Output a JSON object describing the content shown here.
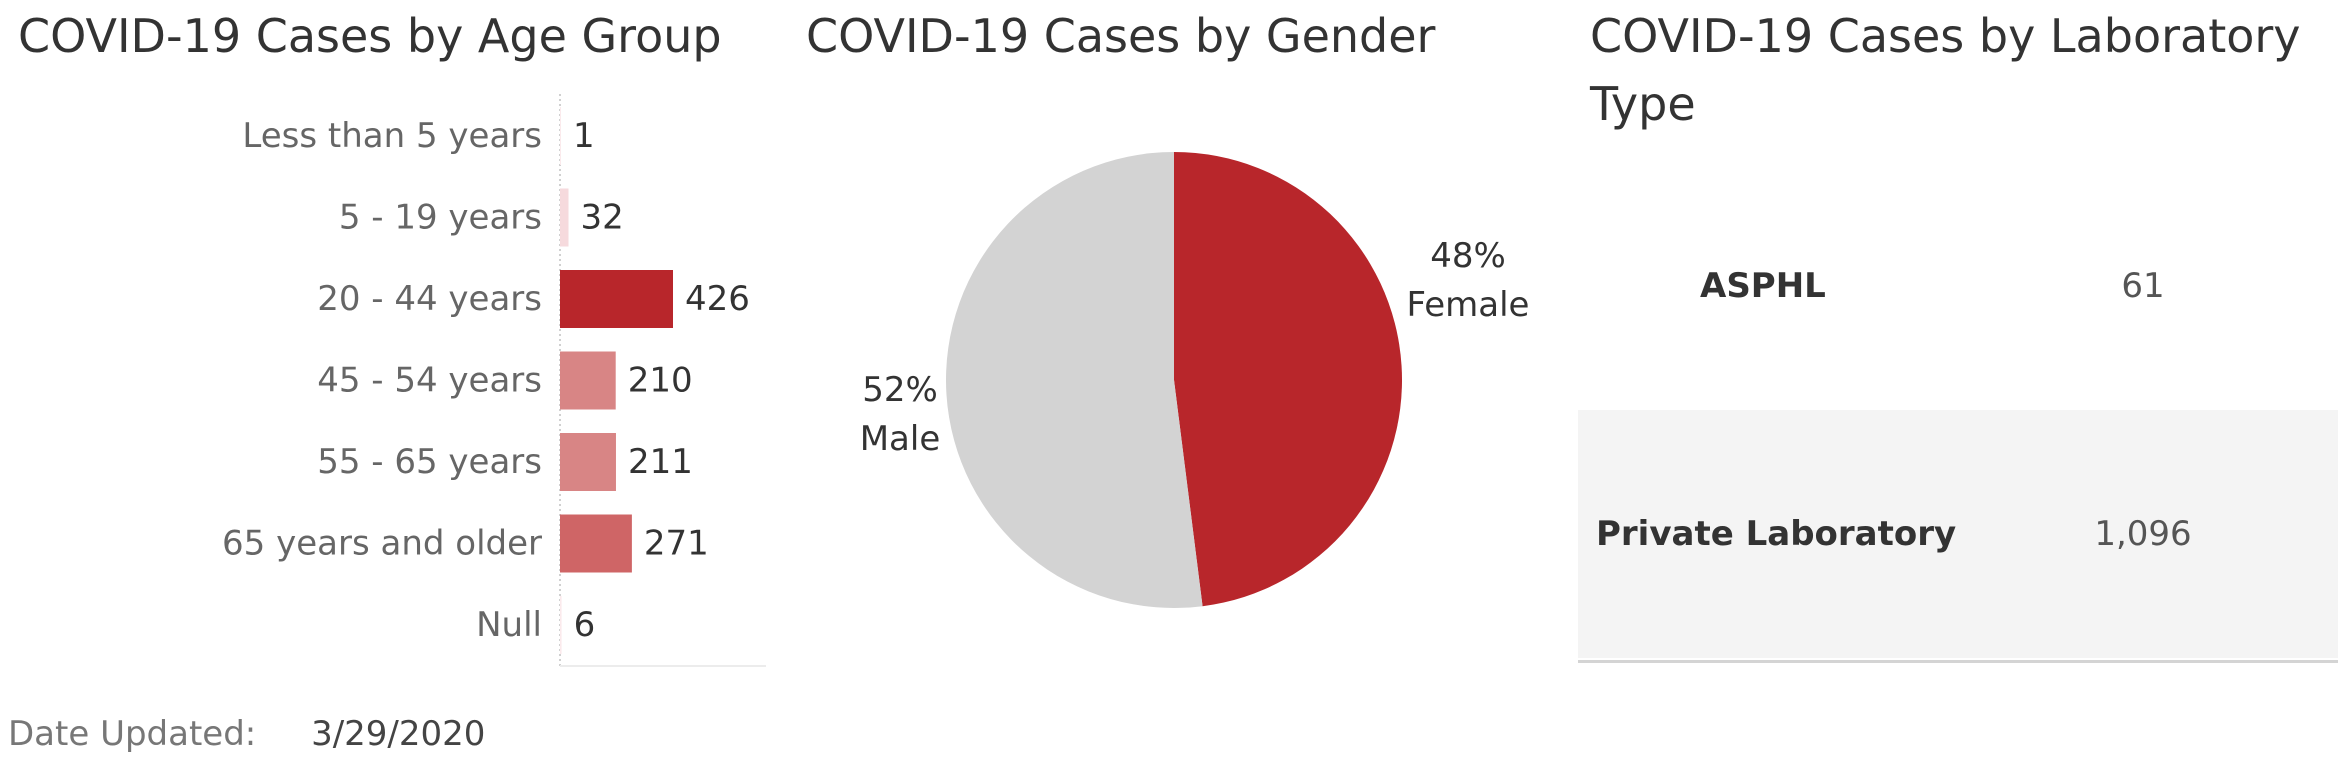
{
  "charts": {
    "age": {
      "title": "COVID-19 Cases by Age Group"
    },
    "gender": {
      "title": "COVID-19 Cases by Gender"
    },
    "lab": {
      "title_line1": "COVID-19 Cases by Laboratory",
      "title_line2": "Type",
      "rows": [
        {
          "name": "ASPHL",
          "value": "61"
        },
        {
          "name": "Private Laboratory",
          "value": "1,096"
        }
      ]
    }
  },
  "footer": {
    "label": "Date Updated:",
    "value": "3/29/2020"
  },
  "chart_data": [
    {
      "type": "bar",
      "orientation": "horizontal",
      "title": "COVID-19 Cases by Age Group",
      "categories": [
        "Less than 5 years",
        "5 - 19 years",
        "20 - 44 years",
        "45 - 54 years",
        "55 - 65 years",
        "65 years and older",
        "Null"
      ],
      "values": [
        1,
        32,
        426,
        210,
        211,
        271,
        6
      ],
      "data_labels": [
        "1",
        "32",
        "426",
        "210",
        "211",
        "271",
        "6"
      ],
      "colors": [
        "#fbeaec",
        "#f6dadd",
        "#b8262b",
        "#d88585",
        "#d88585",
        "#cf6566",
        "#fbeaec"
      ],
      "xlim": [
        0,
        426
      ],
      "grid": false
    },
    {
      "type": "pie",
      "title": "COVID-19 Cases by Gender",
      "categories": [
        "Female",
        "Male"
      ],
      "values": [
        48,
        52
      ],
      "data_labels": [
        "48%",
        "52%"
      ],
      "colors": [
        "#b8262b",
        "#d3d3d3"
      ]
    },
    {
      "type": "table",
      "title": "COVID-19 Cases by Laboratory Type",
      "categories": [
        "ASPHL",
        "Private Laboratory"
      ],
      "values": [
        61,
        1096
      ]
    }
  ]
}
